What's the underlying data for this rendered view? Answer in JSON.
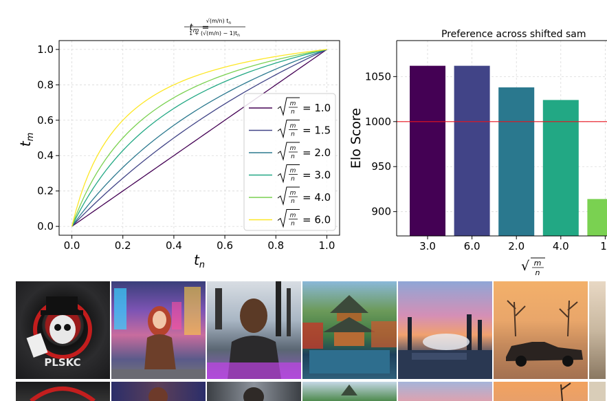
{
  "chart_data": [
    {
      "type": "line",
      "title": "t_m = √(m/n) t_n / (1 + (√(m/n) − 1) t_n)",
      "xlabel": "t_n",
      "ylabel": "t_m",
      "xlim": [
        -0.05,
        1.05
      ],
      "ylim": [
        -0.05,
        1.05
      ],
      "xticks": [
        "0.0",
        "0.2",
        "0.4",
        "0.6",
        "0.8",
        "1.0"
      ],
      "yticks": [
        "0.0",
        "0.2",
        "0.4",
        "0.6",
        "0.8",
        "1.0"
      ],
      "grid": true,
      "legend_position": "lower-right",
      "series": [
        {
          "name": "= 1.0",
          "shift": 1.0,
          "color": "#440154"
        },
        {
          "name": "= 1.5",
          "shift": 1.5,
          "color": "#414487"
        },
        {
          "name": "= 2.0",
          "shift": 2.0,
          "color": "#2a788e"
        },
        {
          "name": "= 3.0",
          "shift": 3.0,
          "color": "#22a884"
        },
        {
          "name": "= 4.0",
          "shift": 4.0,
          "color": "#7ad151"
        },
        {
          "name": "= 6.0",
          "shift": 6.0,
          "color": "#fde725"
        }
      ]
    },
    {
      "type": "bar",
      "title": "Preference across shifted sam",
      "xlabel": "√(m/n)",
      "ylabel": "Elo Score",
      "categories": [
        "3.0",
        "6.0",
        "2.0",
        "4.0",
        "1."
      ],
      "values": [
        1062,
        1062,
        1038,
        1024,
        914
      ],
      "colors": [
        "#440154",
        "#414487",
        "#2a788e",
        "#22a884",
        "#7ad151"
      ],
      "ylim": [
        873,
        1090
      ],
      "yticks": [
        "900",
        "950",
        "1000",
        "1050"
      ],
      "reference_line": 1000,
      "reference_color": "#e8131f",
      "grid": true
    }
  ],
  "images": {
    "row1": [
      "skull-logo-shirt",
      "woman-times-square",
      "man-leather-jacket",
      "pagoda-pond",
      "industrial-sunset",
      "vintage-car-field",
      "partial-image"
    ],
    "row2": [
      "skull-logo-shirt",
      "woman-times-square",
      "man-leather-jacket",
      "pagoda-pond",
      "industrial-sunset",
      "vintage-car-field",
      "partial-image"
    ]
  }
}
